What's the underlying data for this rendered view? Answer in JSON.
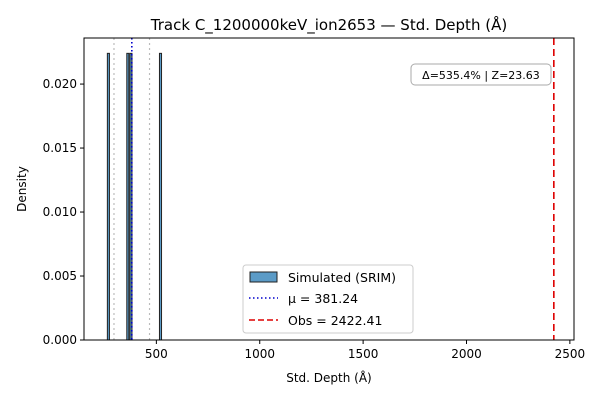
{
  "chart_data": {
    "type": "bar",
    "title": "Track C_1200000keV_ion2653 — Std. Depth (Å)",
    "xlabel": "Std. Depth (Å)",
    "ylabel": "Density",
    "xlim": [
      150,
      2520
    ],
    "ylim": [
      0,
      0.0236
    ],
    "x_ticks": [
      500,
      1000,
      1500,
      2000,
      2500
    ],
    "x_tick_labels": [
      "500",
      "1000",
      "1500",
      "2000",
      "2500"
    ],
    "y_ticks": [
      0.0,
      0.005,
      0.01,
      0.015,
      0.02
    ],
    "y_tick_labels": [
      "0.000",
      "0.005",
      "0.010",
      "0.015",
      "0.020"
    ],
    "grid": false,
    "histogram": {
      "name": "Simulated (SRIM)",
      "color": "#5b9bc7",
      "edgecolor": "#222222",
      "bars": [
        {
          "x_start": 263,
          "x_end": 273,
          "density": 0.0224
        },
        {
          "x_start": 357,
          "x_end": 367,
          "density": 0.0224
        },
        {
          "x_start": 372,
          "x_end": 382,
          "density": 0.0224
        },
        {
          "x_start": 515,
          "x_end": 525,
          "density": 0.0224
        }
      ]
    },
    "vlines": [
      {
        "name": "μ = 381.24",
        "x": 381.24,
        "color": "#0000cc",
        "style": "dotted"
      },
      {
        "name": "Obs = 2422.41",
        "x": 2422.41,
        "color": "#dd0000",
        "style": "dashed"
      },
      {
        "x": 295,
        "color": "#bbbbbb",
        "style": "dotted"
      },
      {
        "x": 467,
        "color": "#bbbbbb",
        "style": "dotted"
      }
    ],
    "annotation": "Δ=535.4% | Z=23.63",
    "legend": {
      "placement": "lower-center",
      "entries": [
        "Simulated (SRIM)",
        "μ = 381.24",
        "Obs = 2422.41"
      ]
    }
  }
}
